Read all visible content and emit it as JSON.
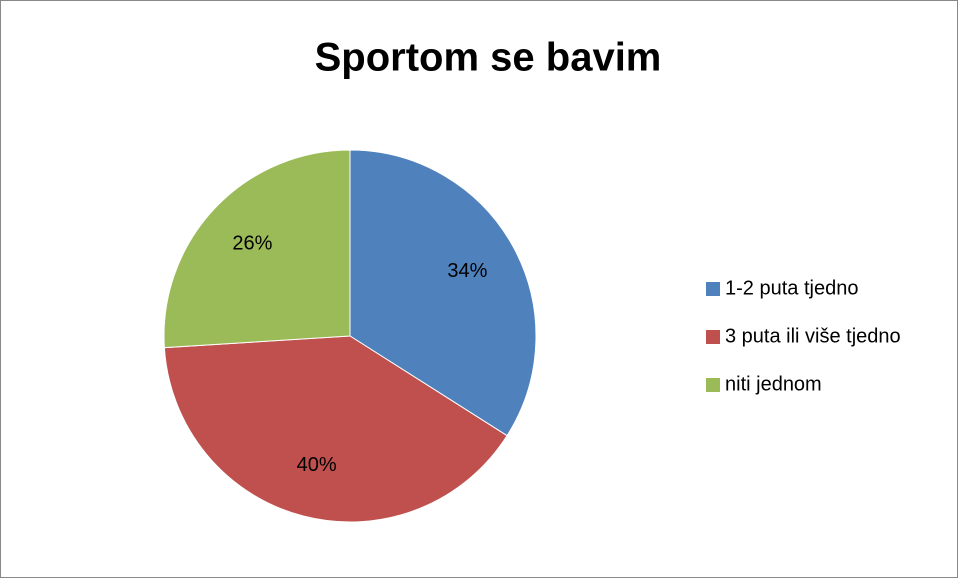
{
  "chart_data": {
    "type": "pie",
    "title": "Sportom se bavim",
    "categories": [
      "1-2 puta tjedno",
      "3 puta ili više tjedno",
      "niti jednom"
    ],
    "values": [
      34,
      40,
      26
    ],
    "value_labels": [
      "34%",
      "40%",
      "26%"
    ],
    "colors": [
      "#4f81bd",
      "#c0504d",
      "#9bbb59"
    ],
    "legend": "right"
  }
}
